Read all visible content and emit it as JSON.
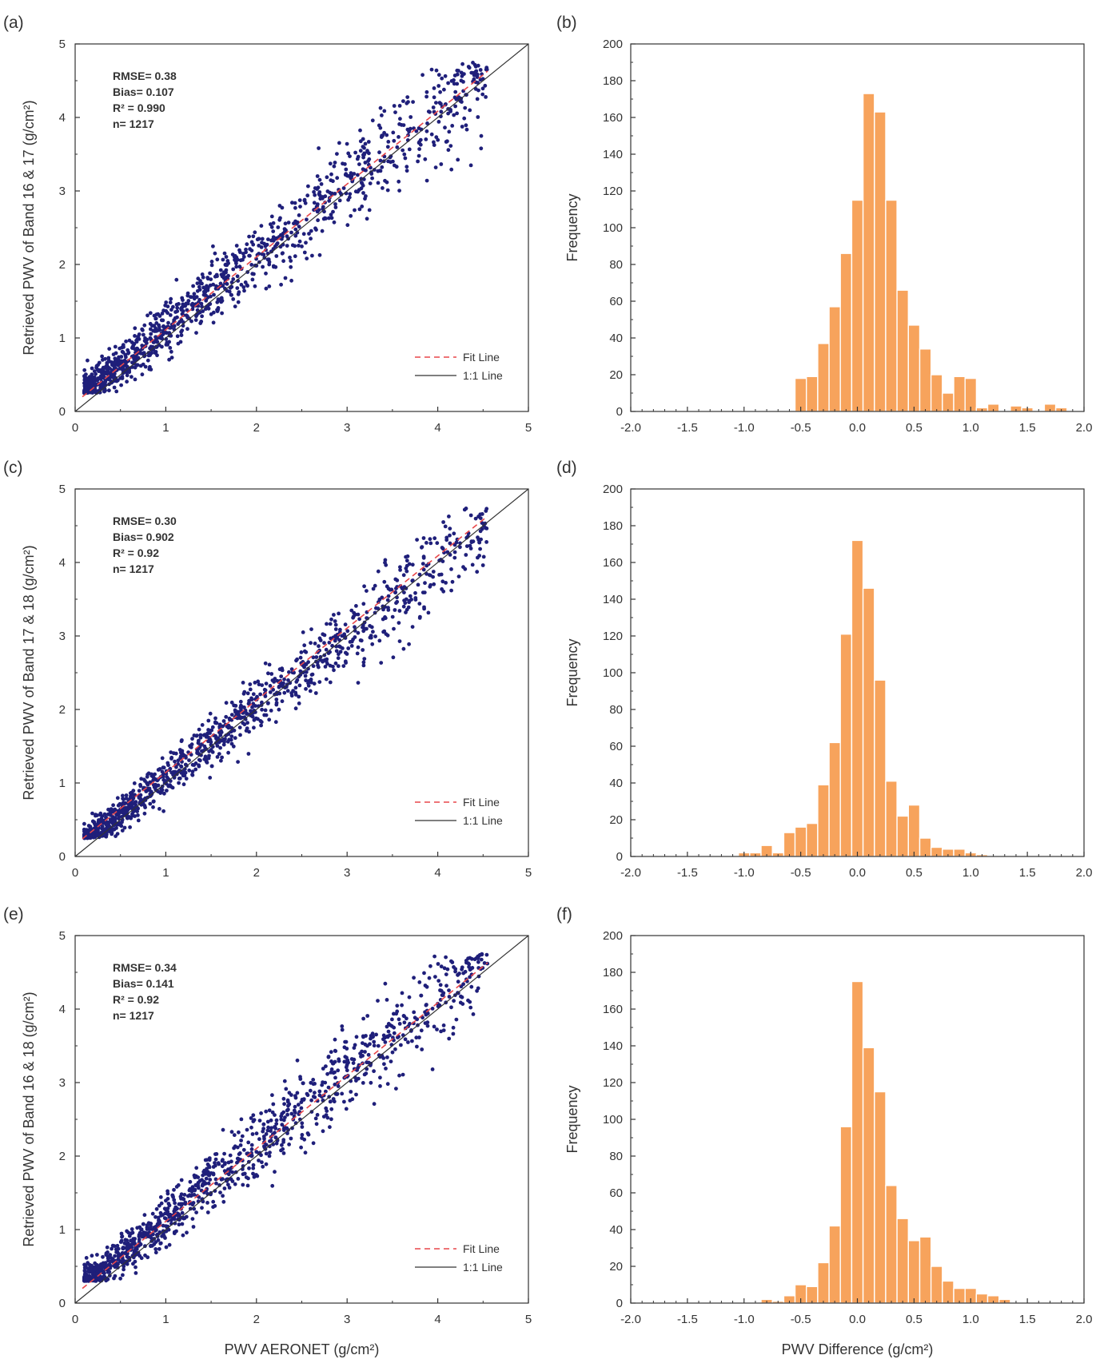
{
  "colors": {
    "points": "#1f1f7a",
    "bars": "#f7a35c",
    "bar_edge": "#ffffff",
    "fit": "#e8474a",
    "one_to_one": "#333333",
    "axes": "#333333"
  },
  "chart_data": [
    {
      "panel_label": "(a)",
      "type": "scatter",
      "ylabel": "Retrieved PWV of Band 16 & 17 (g/cm²)",
      "xlabel": "",
      "xlim": [
        0,
        5
      ],
      "ylim": [
        0,
        5
      ],
      "xticks": [
        "0",
        "1",
        "2",
        "3",
        "4",
        "5"
      ],
      "yticks": [
        "0",
        "1",
        "2",
        "3",
        "4",
        "5"
      ],
      "stats": [
        "RMSE= 0.38",
        "Bias= 0.107",
        "R² = 0.990",
        "n= 1217"
      ],
      "legend": [
        "Fit Line",
        "1:1 Line"
      ],
      "fit_line": {
        "x": [
          0.08,
          4.55
        ],
        "y": [
          0.2,
          4.63
        ]
      },
      "one_to_one": {
        "x": [
          0,
          5
        ],
        "y": [
          0,
          5
        ]
      },
      "scatter_model": {
        "n": 1217,
        "seed": 11,
        "slope": 0.99,
        "intercept": 0.13,
        "noise": 0.32,
        "y_floor": 0.25
      }
    },
    {
      "panel_label": "(b)",
      "type": "bar",
      "xlabel": "",
      "ylabel": "Frequency",
      "xlim": [
        -2.0,
        2.0
      ],
      "ylim": [
        0,
        200
      ],
      "xticks": [
        "-2.0",
        "-1.5",
        "-1.0",
        "-0.5",
        "0.0",
        "0.5",
        "1.0",
        "1.5",
        "2.0"
      ],
      "yticks": [
        "0",
        "20",
        "40",
        "60",
        "80",
        "100",
        "120",
        "140",
        "160",
        "180",
        "200"
      ],
      "bin_width": 0.1,
      "bin_starts": [
        -0.55,
        -0.45,
        -0.35,
        -0.25,
        -0.15,
        -0.05,
        0.05,
        0.15,
        0.25,
        0.35,
        0.45,
        0.55,
        0.65,
        0.75,
        0.85,
        0.95,
        1.05,
        1.15,
        1.25,
        1.35,
        1.45,
        1.55,
        1.65,
        1.75
      ],
      "values": [
        18,
        19,
        37,
        57,
        86,
        115,
        173,
        163,
        115,
        66,
        47,
        34,
        20,
        10,
        19,
        18,
        2,
        4,
        0,
        3,
        2,
        0,
        4,
        2
      ]
    },
    {
      "panel_label": "(c)",
      "type": "scatter",
      "ylabel": "Retrieved PWV of Band 17 & 18 (g/cm²)",
      "xlabel": "",
      "xlim": [
        0,
        5
      ],
      "ylim": [
        0,
        5
      ],
      "xticks": [
        "0",
        "1",
        "2",
        "3",
        "4",
        "5"
      ],
      "yticks": [
        "0",
        "1",
        "2",
        "3",
        "4",
        "5"
      ],
      "stats": [
        "RMSE= 0.30",
        "Bias= 0.902",
        "R² = 0.92",
        "n= 1217"
      ],
      "legend": [
        "Fit Line",
        "1:1 Line"
      ],
      "fit_line": {
        "x": [
          0.08,
          4.55
        ],
        "y": [
          0.24,
          4.63
        ]
      },
      "one_to_one": {
        "x": [
          0,
          5
        ],
        "y": [
          0,
          5
        ]
      },
      "scatter_model": {
        "n": 1217,
        "seed": 23,
        "slope": 0.96,
        "intercept": 0.1,
        "noise": 0.26,
        "y_floor": 0.25
      }
    },
    {
      "panel_label": "(d)",
      "type": "bar",
      "xlabel": "",
      "ylabel": "Frequency",
      "xlim": [
        -2.0,
        2.0
      ],
      "ylim": [
        0,
        200
      ],
      "xticks": [
        "-2.0",
        "-1.5",
        "-1.0",
        "-0.5",
        "0.0",
        "0.5",
        "1.0",
        "1.5",
        "2.0"
      ],
      "yticks": [
        "0",
        "20",
        "40",
        "60",
        "80",
        "100",
        "120",
        "140",
        "160",
        "180",
        "200"
      ],
      "bin_width": 0.1,
      "bin_starts": [
        -1.05,
        -0.95,
        -0.85,
        -0.75,
        -0.65,
        -0.55,
        -0.45,
        -0.35,
        -0.25,
        -0.15,
        -0.05,
        0.05,
        0.15,
        0.25,
        0.35,
        0.45,
        0.55,
        0.65,
        0.75,
        0.85,
        0.95,
        1.05
      ],
      "values": [
        2,
        2,
        6,
        2,
        13,
        16,
        18,
        39,
        62,
        121,
        172,
        146,
        96,
        41,
        22,
        28,
        10,
        5,
        4,
        4,
        2,
        1
      ]
    },
    {
      "panel_label": "(e)",
      "type": "scatter",
      "ylabel": "Retrieved PWV of Band 16 & 18 (g/cm²)",
      "xlabel": "PWV AERONET (g/cm²)",
      "xlim": [
        0,
        5
      ],
      "ylim": [
        0,
        5
      ],
      "xticks": [
        "0",
        "1",
        "2",
        "3",
        "4",
        "5"
      ],
      "yticks": [
        "0",
        "1",
        "2",
        "3",
        "4",
        "5"
      ],
      "stats": [
        "RMSE= 0.34",
        "Bias= 0.141",
        "R² = 0.92",
        "n= 1217"
      ],
      "legend": [
        "Fit Line",
        "1:1 Line"
      ],
      "fit_line": {
        "x": [
          0.08,
          4.55
        ],
        "y": [
          0.2,
          4.63
        ]
      },
      "one_to_one": {
        "x": [
          0,
          5
        ],
        "y": [
          0,
          5
        ]
      },
      "scatter_model": {
        "n": 1217,
        "seed": 37,
        "slope": 1.0,
        "intercept": 0.15,
        "noise": 0.3,
        "y_floor": 0.3
      }
    },
    {
      "panel_label": "(f)",
      "type": "bar",
      "xlabel": "PWV Difference (g/cm²)",
      "ylabel": "Frequency",
      "xlim": [
        -2.0,
        2.0
      ],
      "ylim": [
        0,
        200
      ],
      "xticks": [
        "-2.0",
        "-1.5",
        "-1.0",
        "-0.5",
        "0.0",
        "0.5",
        "1.0",
        "1.5",
        "2.0"
      ],
      "yticks": [
        "0",
        "20",
        "40",
        "60",
        "80",
        "100",
        "120",
        "140",
        "160",
        "180",
        "200"
      ],
      "bin_width": 0.1,
      "bin_starts": [
        -0.85,
        -0.75,
        -0.65,
        -0.55,
        -0.45,
        -0.35,
        -0.25,
        -0.15,
        -0.05,
        0.05,
        0.15,
        0.25,
        0.35,
        0.45,
        0.55,
        0.65,
        0.75,
        0.85,
        0.95,
        1.05,
        1.15,
        1.25
      ],
      "values": [
        2,
        1,
        4,
        10,
        9,
        22,
        42,
        96,
        175,
        139,
        115,
        64,
        46,
        34,
        36,
        20,
        12,
        8,
        8,
        5,
        4,
        2
      ]
    }
  ]
}
